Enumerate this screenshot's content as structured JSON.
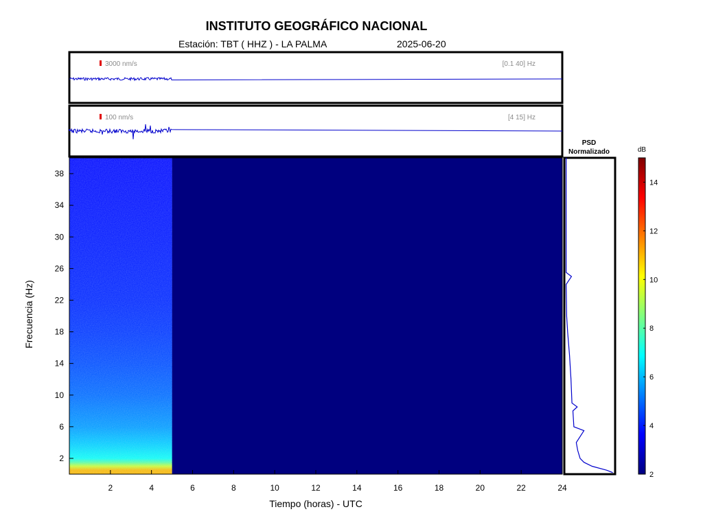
{
  "header": {
    "title": "INSTITUTO GEOGRÁFICO NACIONAL",
    "station": "Estación:  TBT ( HHZ ) - LA PALMA",
    "date": "2025-06-20"
  },
  "traces": [
    {
      "scale_label": "3000 nm/s",
      "band_label": "[0.1 40] Hz"
    },
    {
      "scale_label": "100 nm/s",
      "band_label": "[4 15] Hz"
    }
  ],
  "psd": {
    "title_line1": "PSD",
    "title_line2": "Normalizado"
  },
  "colorbar": {
    "unit": "dB",
    "range": [
      2,
      15
    ],
    "ticks": [
      2,
      4,
      6,
      8,
      10,
      12,
      14
    ],
    "tick_labels": [
      "2",
      "4",
      "6",
      "8",
      "10",
      "12",
      "14"
    ]
  },
  "chart_data": {
    "type": "heatmap",
    "xlabel": "Tiempo (horas) - UTC",
    "ylabel": "Frecuencia  (Hz)",
    "xlim": [
      0,
      24
    ],
    "ylim": [
      0,
      40
    ],
    "x_ticks": [
      2,
      4,
      6,
      8,
      10,
      12,
      14,
      16,
      18,
      20,
      22,
      24
    ],
    "x_tick_labels": [
      "2",
      "4",
      "6",
      "8",
      "10",
      "12",
      "14",
      "16",
      "18",
      "20",
      "22",
      "24"
    ],
    "y_ticks": [
      2,
      6,
      10,
      14,
      18,
      22,
      26,
      30,
      34,
      38
    ],
    "y_tick_labels": [
      "2",
      "6",
      "10",
      "14",
      "18",
      "22",
      "26",
      "30",
      "34",
      "38"
    ],
    "data_end_hour": 5,
    "background_db": 2,
    "colors": {
      "line": "#0000cc",
      "scale_bar": "#e00000",
      "colorbar_stops": [
        "#00007f",
        "#0000ff",
        "#007fff",
        "#00ffff",
        "#7fff7f",
        "#ffff00",
        "#ff7f00",
        "#ff0000",
        "#7f0000"
      ]
    },
    "spectrogram_profile": [
      {
        "freq_hz": 0.5,
        "db": 11
      },
      {
        "freq_hz": 1,
        "db": 9.5
      },
      {
        "freq_hz": 1.5,
        "db": 8
      },
      {
        "freq_hz": 2,
        "db": 7
      },
      {
        "freq_hz": 4,
        "db": 6.2
      },
      {
        "freq_hz": 6,
        "db": 5.6
      },
      {
        "freq_hz": 10,
        "db": 5
      },
      {
        "freq_hz": 14,
        "db": 4.6
      },
      {
        "freq_hz": 18,
        "db": 4.3
      },
      {
        "freq_hz": 22,
        "db": 4.1
      },
      {
        "freq_hz": 30,
        "db": 3.9
      },
      {
        "freq_hz": 40,
        "db": 3.7
      }
    ],
    "psd_curve": [
      {
        "freq_hz": 0.2,
        "value": 0.98
      },
      {
        "freq_hz": 0.5,
        "value": 0.85
      },
      {
        "freq_hz": 1,
        "value": 0.55
      },
      {
        "freq_hz": 1.5,
        "value": 0.38
      },
      {
        "freq_hz": 2,
        "value": 0.3
      },
      {
        "freq_hz": 3,
        "value": 0.25
      },
      {
        "freq_hz": 4,
        "value": 0.22
      },
      {
        "freq_hz": 5.5,
        "value": 0.38
      },
      {
        "freq_hz": 6,
        "value": 0.17
      },
      {
        "freq_hz": 8,
        "value": 0.15
      },
      {
        "freq_hz": 8.5,
        "value": 0.24
      },
      {
        "freq_hz": 9,
        "value": 0.13
      },
      {
        "freq_hz": 12,
        "value": 0.11
      },
      {
        "freq_hz": 15,
        "value": 0.08
      },
      {
        "freq_hz": 18,
        "value": 0.04
      },
      {
        "freq_hz": 20,
        "value": 0.02
      },
      {
        "freq_hz": 24,
        "value": 0.01
      },
      {
        "freq_hz": 25,
        "value": 0.12
      },
      {
        "freq_hz": 25.5,
        "value": 0.01
      },
      {
        "freq_hz": 40,
        "value": 0.01
      }
    ]
  }
}
